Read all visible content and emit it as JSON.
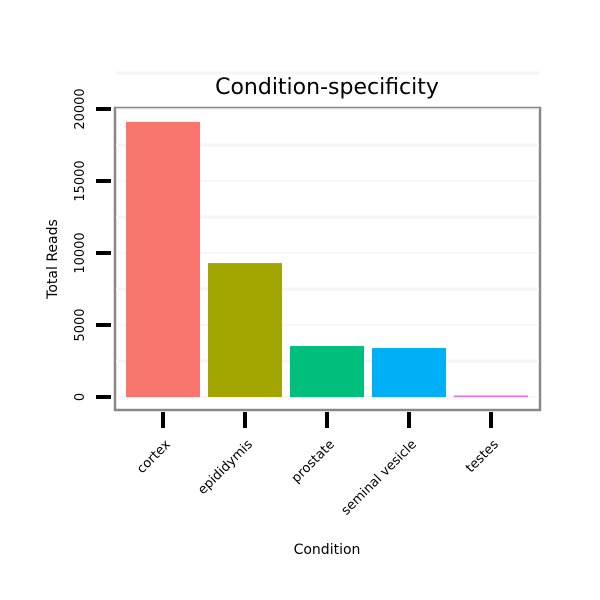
{
  "chart_data": {
    "type": "bar",
    "title": "Condition-specificity",
    "xlabel": "Condition",
    "ylabel": "Total Reads",
    "categories": [
      "cortex",
      "epididymis",
      "prostate",
      "seminal vesicle",
      "testes"
    ],
    "values": [
      19100,
      9300,
      3540,
      3400,
      30
    ],
    "colors": [
      "#F8766D",
      "#A3A500",
      "#00BF7D",
      "#00B0F6",
      "#E76BF3"
    ],
    "yticks": [
      0,
      5000,
      10000,
      15000,
      20000
    ],
    "ytick_labels": [
      "0",
      "5000",
      "10000",
      "15000",
      "20000"
    ],
    "ylim": [
      -800,
      20200
    ],
    "grid": true,
    "legend": "none"
  }
}
